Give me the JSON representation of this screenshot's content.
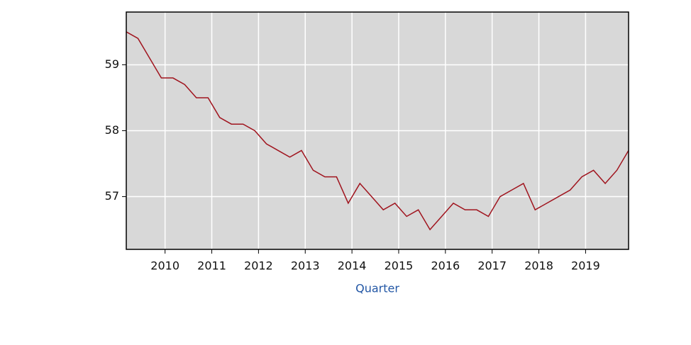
{
  "chart_data": {
    "type": "line",
    "x_label": "Quarter",
    "x": [
      2009.17,
      2009.42,
      2009.67,
      2009.92,
      2010.17,
      2010.42,
      2010.67,
      2010.92,
      2011.17,
      2011.42,
      2011.67,
      2011.92,
      2012.17,
      2012.42,
      2012.67,
      2012.92,
      2013.17,
      2013.42,
      2013.67,
      2013.92,
      2014.17,
      2014.42,
      2014.67,
      2014.92,
      2015.17,
      2015.42,
      2015.67,
      2015.92,
      2016.17,
      2016.42,
      2016.67,
      2016.92,
      2017.17,
      2017.42,
      2017.67,
      2017.92,
      2018.17,
      2018.42,
      2018.67,
      2018.92,
      2019.17,
      2019.42,
      2019.67,
      2019.92
    ],
    "series": [
      {
        "color": "#a0141e",
        "values": [
          59.5,
          59.4,
          59.1,
          58.8,
          58.8,
          58.7,
          58.5,
          58.5,
          58.2,
          58.1,
          58.1,
          58.0,
          57.8,
          57.7,
          57.6,
          57.7,
          57.4,
          57.3,
          57.3,
          56.9,
          57.2,
          57.0,
          56.8,
          56.9,
          56.7,
          56.8,
          56.5,
          56.7,
          56.9,
          56.8,
          56.8,
          56.7,
          57.0,
          57.1,
          57.2,
          56.8,
          56.9,
          57.0,
          57.1,
          57.3,
          57.4,
          57.2,
          57.4,
          57.7
        ]
      }
    ],
    "xlim": [
      2009.17,
      2019.92
    ],
    "xticks": [
      2010,
      2011,
      2012,
      2013,
      2014,
      2015,
      2016,
      2017,
      2018,
      2019
    ],
    "ylim": [
      56.2,
      59.8
    ],
    "yticks": [
      57,
      58,
      59
    ],
    "grid": true
  }
}
